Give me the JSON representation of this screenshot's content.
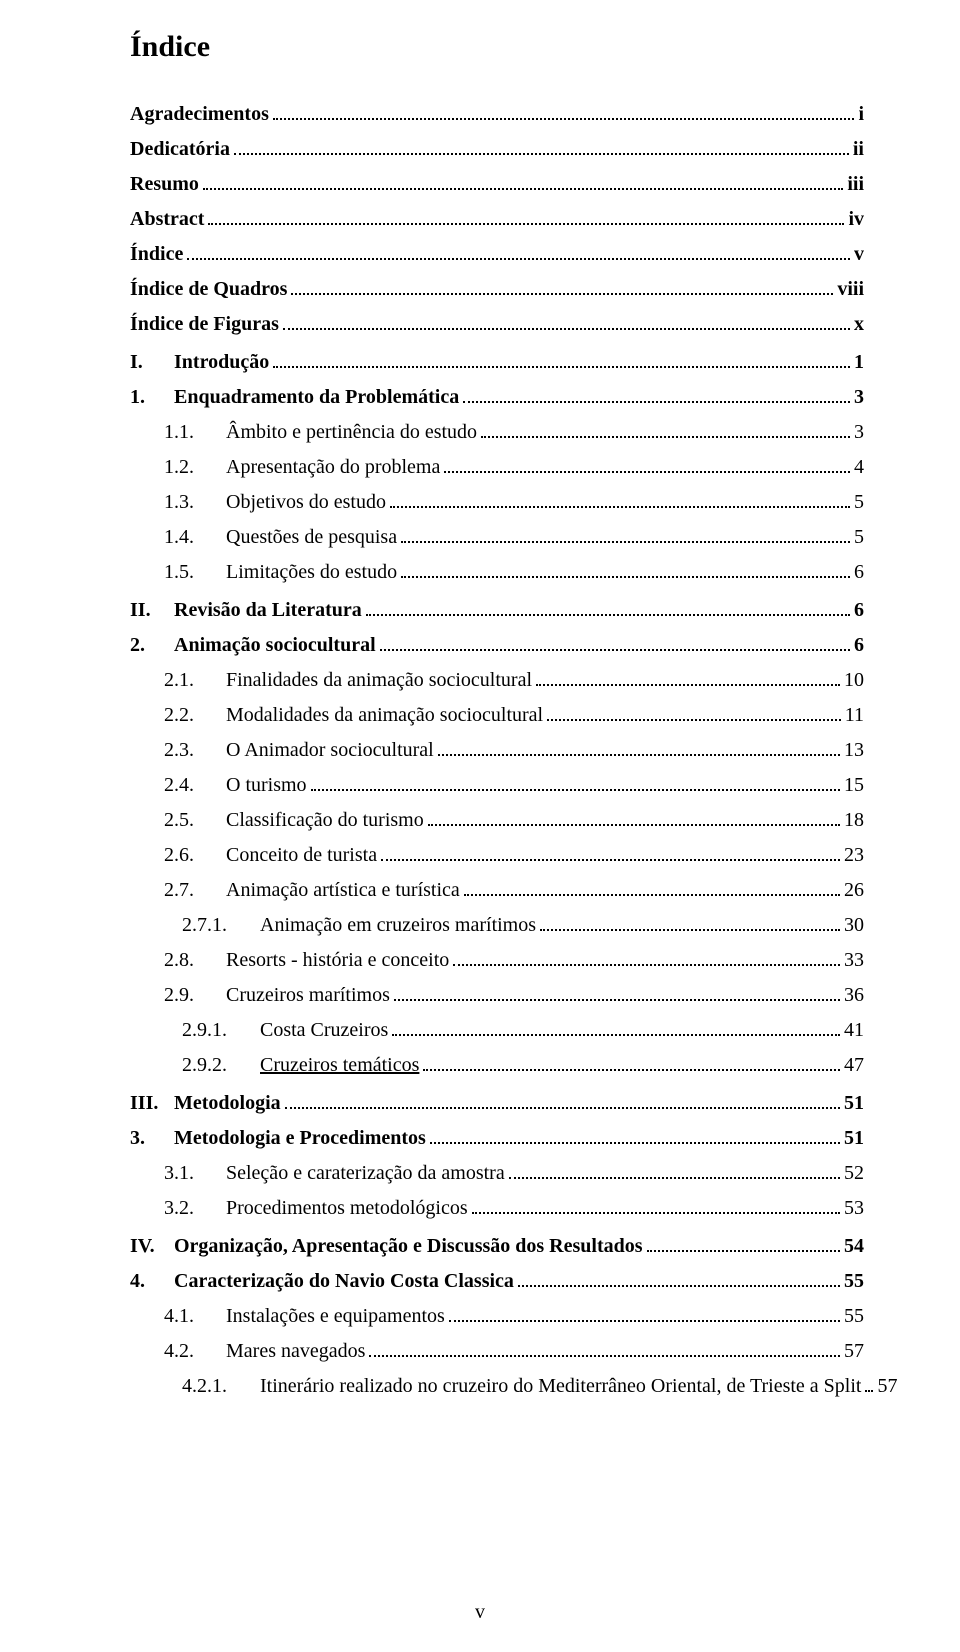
{
  "page": {
    "title": "Índice",
    "footer": "v",
    "background_color": "#ffffff",
    "text_color": "#000000",
    "font_family": "Times New Roman",
    "title_fontsize": 30,
    "body_fontsize": 20,
    "dot_leader_color": "#000000"
  },
  "entries": [
    {
      "label": "Agradecimentos",
      "page": "i",
      "bold": true,
      "indent": 0,
      "underline": false,
      "gap": false
    },
    {
      "label": "Dedicatória",
      "page": "ii",
      "bold": true,
      "indent": 0,
      "underline": false,
      "gap": false
    },
    {
      "label": "Resumo",
      "page": "iii",
      "bold": true,
      "indent": 0,
      "underline": false,
      "gap": false
    },
    {
      "label": "Abstract",
      "page": "iv",
      "bold": true,
      "indent": 0,
      "underline": false,
      "gap": false
    },
    {
      "label": "Índice",
      "page": "v",
      "bold": true,
      "indent": 0,
      "underline": false,
      "gap": false
    },
    {
      "label": "Índice de Quadros",
      "page": "viii",
      "bold": true,
      "indent": 0,
      "underline": false,
      "gap": false
    },
    {
      "label": "Índice de Figuras",
      "page": "x",
      "bold": true,
      "indent": 0,
      "underline": false,
      "gap": false
    },
    {
      "num": "I.",
      "label": "Introdução",
      "page": "1",
      "bold": true,
      "indent": 0,
      "numw": "w1",
      "gap": true
    },
    {
      "num": "1.",
      "label": "Enquadramento da Problemática",
      "page": "3",
      "bold": true,
      "indent": 0,
      "numw": "w1",
      "gap": false
    },
    {
      "num": "1.1.",
      "label": "Âmbito e pertinência do estudo",
      "page": "3",
      "bold": false,
      "indent": 1,
      "numw": "w2",
      "gap": false
    },
    {
      "num": "1.2.",
      "label": "Apresentação do problema",
      "page": "4",
      "bold": false,
      "indent": 1,
      "numw": "w2",
      "gap": false
    },
    {
      "num": "1.3.",
      "label": "Objetivos do estudo",
      "page": "5",
      "bold": false,
      "indent": 1,
      "numw": "w2",
      "gap": false
    },
    {
      "num": "1.4.",
      "label": "Questões de pesquisa",
      "page": "5",
      "bold": false,
      "indent": 1,
      "numw": "w2",
      "gap": false
    },
    {
      "num": "1.5.",
      "label": "Limitações do estudo",
      "page": "6",
      "bold": false,
      "indent": 1,
      "numw": "w2",
      "gap": false
    },
    {
      "num": "II.",
      "label": "Revisão da Literatura",
      "page": "6",
      "bold": true,
      "indent": 0,
      "numw": "w1",
      "gap": true
    },
    {
      "num": "2.",
      "label": "Animação sociocultural",
      "page": "6",
      "bold": true,
      "indent": 0,
      "numw": "w1",
      "gap": false
    },
    {
      "num": "2.1.",
      "label": "Finalidades da animação sociocultural",
      "page": "10",
      "bold": false,
      "indent": 1,
      "numw": "w2",
      "gap": false
    },
    {
      "num": "2.2.",
      "label": "Modalidades da animação sociocultural",
      "page": "11",
      "bold": false,
      "indent": 1,
      "numw": "w2",
      "gap": false
    },
    {
      "num": "2.3.",
      "label": "O Animador sociocultural",
      "page": "13",
      "bold": false,
      "indent": 1,
      "numw": "w2",
      "gap": false
    },
    {
      "num": "2.4.",
      "label": "O turismo",
      "page": "15",
      "bold": false,
      "indent": 1,
      "numw": "w2",
      "gap": false
    },
    {
      "num": "2.5.",
      "label": "Classificação do turismo",
      "page": "18",
      "bold": false,
      "indent": 1,
      "numw": "w2",
      "gap": false
    },
    {
      "num": "2.6.",
      "label": "Conceito de turista",
      "page": "23",
      "bold": false,
      "indent": 1,
      "numw": "w2",
      "gap": false
    },
    {
      "num": "2.7.",
      "label": "Animação artística e turística",
      "page": "26",
      "bold": false,
      "indent": 1,
      "numw": "w2",
      "gap": false
    },
    {
      "num": "2.7.1.",
      "label": "Animação em cruzeiros marítimos",
      "page": "30",
      "bold": false,
      "indent": 2,
      "numw": "w3",
      "gap": false
    },
    {
      "num": "2.8.",
      "label": "Resorts - história e conceito",
      "page": "33",
      "bold": false,
      "indent": 1,
      "numw": "w2",
      "gap": false
    },
    {
      "num": "2.9.",
      "label": "Cruzeiros marítimos",
      "page": "36",
      "bold": false,
      "indent": 1,
      "numw": "w2",
      "gap": false
    },
    {
      "num": "2.9.1.",
      "label": "Costa Cruzeiros",
      "page": "41",
      "bold": false,
      "indent": 2,
      "numw": "w3",
      "gap": false
    },
    {
      "num": "2.9.2.",
      "label": "Cruzeiros temáticos",
      "page": "47",
      "bold": false,
      "indent": 2,
      "numw": "w3",
      "underline": true,
      "gap": false
    },
    {
      "num": "III.",
      "label": "Metodologia",
      "page": "51",
      "bold": true,
      "indent": 0,
      "numw": "w1",
      "gap": true
    },
    {
      "num": "3.",
      "label": "Metodologia e Procedimentos",
      "page": "51",
      "bold": true,
      "indent": 0,
      "numw": "w1",
      "gap": false
    },
    {
      "num": "3.1.",
      "label": "Seleção e caraterização da amostra",
      "page": "52",
      "bold": false,
      "indent": 1,
      "numw": "w2",
      "gap": false
    },
    {
      "num": "3.2.",
      "label": "Procedimentos metodológicos",
      "page": "53",
      "bold": false,
      "indent": 1,
      "numw": "w2",
      "gap": false
    },
    {
      "num": "IV.",
      "label": "Organização, Apresentação e Discussão dos Resultados",
      "page": "54",
      "bold": true,
      "indent": 0,
      "numw": "w1",
      "gap": true
    },
    {
      "num": "4.",
      "label": "Caracterização do Navio Costa Classica",
      "page": "55",
      "bold": true,
      "indent": 0,
      "numw": "w1",
      "gap": false
    },
    {
      "num": "4.1.",
      "label": "Instalações e equipamentos",
      "page": "55",
      "bold": false,
      "indent": 1,
      "numw": "w2",
      "gap": false
    },
    {
      "num": "4.2.",
      "label": "Mares navegados",
      "page": "57",
      "bold": false,
      "indent": 1,
      "numw": "w2",
      "gap": false
    },
    {
      "num": "4.2.1.",
      "label": "Itinerário realizado no cruzeiro do Mediterrâneo Oriental, de Trieste a Split",
      "page": "57",
      "bold": false,
      "indent": 2,
      "numw": "w3",
      "gap": false
    }
  ]
}
